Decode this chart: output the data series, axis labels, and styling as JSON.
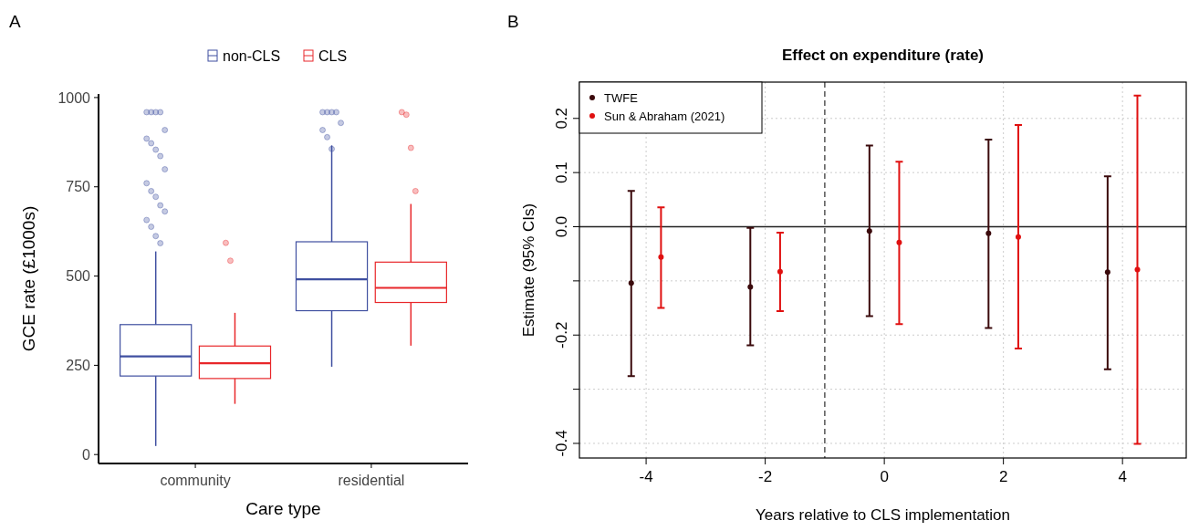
{
  "chart_data": [
    {
      "type": "box",
      "xlabel": "Care type",
      "ylabel": "GCE rate (£1000s)",
      "categories": [
        "community",
        "residential"
      ],
      "ylim": [
        -25,
        1010
      ],
      "yticks": [
        0,
        250,
        500,
        750,
        1000
      ],
      "legend": "top",
      "grid": false,
      "annotations": [
        "A"
      ],
      "series": [
        {
          "name": "non-CLS",
          "color": "#3f4fa0",
          "boxes": [
            {
              "low": 24,
              "q1": 220,
              "median": 275,
              "q3": 364,
              "high": 569,
              "outliers": [
                959,
                959,
                959,
                959,
                909,
                885,
                872,
                854,
                836,
                799,
                760,
                738,
                722,
                698,
                681,
                657,
                638,
                612,
                592
              ]
            },
            {
              "low": 246,
              "q1": 403,
              "median": 491,
              "q3": 596,
              "high": 866,
              "outliers": [
                959,
                959,
                959,
                959,
                929,
                909,
                889,
                856
              ]
            }
          ]
        },
        {
          "name": "CLS",
          "color": "#e8272a",
          "boxes": [
            {
              "low": 142,
              "q1": 213,
              "median": 256,
              "q3": 304,
              "high": 397,
              "outliers": [
                593,
                543
              ]
            },
            {
              "low": 305,
              "q1": 426,
              "median": 467,
              "q3": 539,
              "high": 702,
              "outliers": [
                959,
                952,
                859,
                738
              ]
            }
          ]
        }
      ]
    },
    {
      "type": "scatter",
      "title": "Effect on expenditure (rate)",
      "xlabel": "Years relative to CLS implementation",
      "ylabel": "Estimate (95% CIs)",
      "xlim": [
        -5.12,
        5.07
      ],
      "xticks": [
        -4,
        -2,
        0,
        2,
        4
      ],
      "ylim": [
        -0.427,
        0.267
      ],
      "yticks": [
        -0.4,
        {
          "value": -0.3,
          "label": null
        },
        -0.2,
        {
          "value": -0.1,
          "label": null
        },
        {
          "value": 0,
          "label": "0.0"
        },
        0.1,
        0.2
      ],
      "grid": true,
      "legend": "top left",
      "marker": "circle",
      "annotations": [
        "B"
      ],
      "ref_lines": [
        {
          "axis": "y",
          "value": 0,
          "color": "#222222",
          "line_style": "solid"
        },
        {
          "axis": "x",
          "value": -1,
          "color": "#555555",
          "line_style": "dashed"
        }
      ],
      "series": [
        {
          "name": "TWFE",
          "color": "#3b0a0c",
          "x": [
            -4.25,
            -2.25,
            -0.25,
            1.75,
            3.75
          ],
          "values": [
            -0.104,
            -0.111,
            -0.008,
            -0.012,
            -0.084
          ],
          "errors": [
            [
              -0.276,
              0.066
            ],
            [
              -0.219,
              -0.002
            ],
            [
              -0.165,
              0.15
            ],
            [
              -0.187,
              0.161
            ],
            [
              -0.263,
              0.093
            ]
          ]
        },
        {
          "name": "Sun & Abraham (2021)",
          "color": "#e01010",
          "x": [
            -3.75,
            -1.75,
            0.25,
            2.25,
            4.25
          ],
          "values": [
            -0.056,
            -0.083,
            -0.029,
            -0.019,
            -0.079
          ],
          "errors": [
            [
              -0.15,
              0.036
            ],
            [
              -0.156,
              -0.011
            ],
            [
              -0.18,
              0.12
            ],
            [
              -0.225,
              0.188
            ],
            [
              -0.401,
              0.242
            ]
          ]
        }
      ]
    }
  ]
}
